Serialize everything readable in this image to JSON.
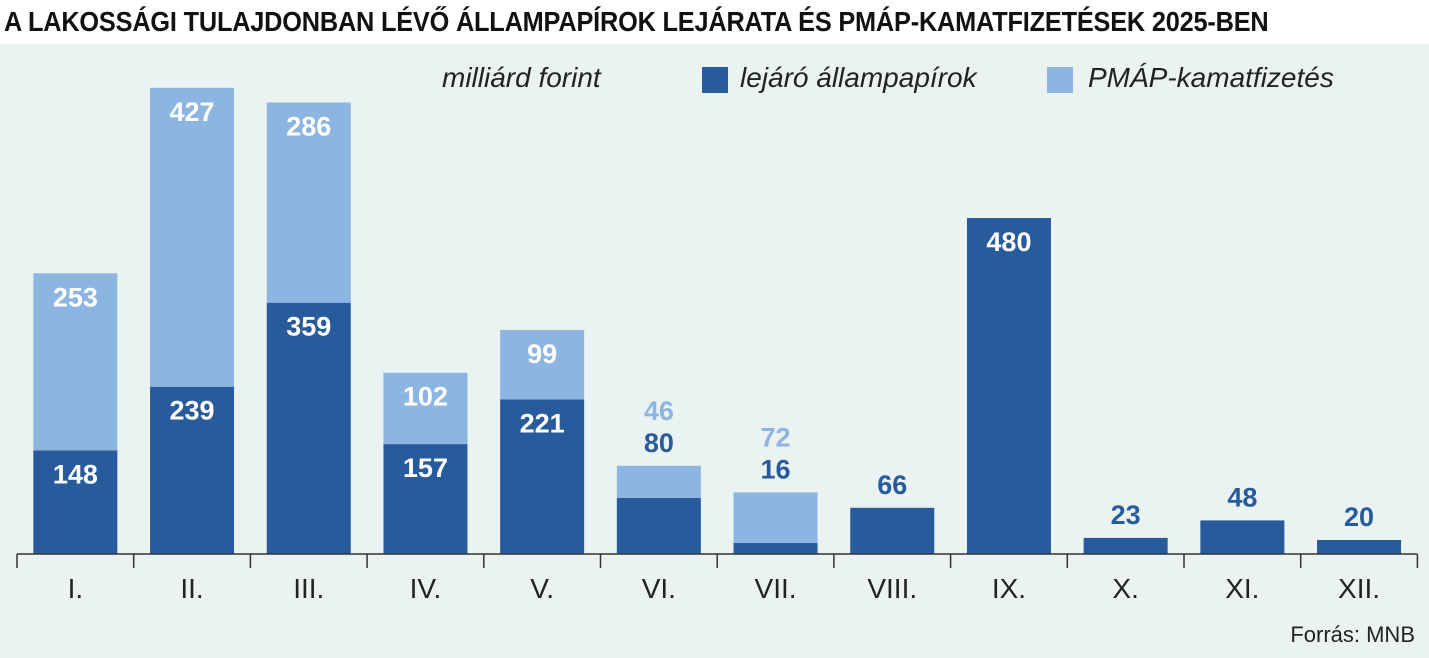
{
  "title": "A LAKOSSÁGI TULAJDONBAN LÉVŐ ÁLLAMPAPÍROK LEJÁRATA ÉS PMÁP-KAMATFIZETÉSEK 2025-BEN",
  "unit": "milliárd forint",
  "source": "Forrás: MNB",
  "colors": {
    "background": "#eaf3f1",
    "dark": "#275b9c",
    "light": "#8db5e2"
  },
  "legend": [
    {
      "label": "lejáró állampapírok",
      "color": "#275b9c"
    },
    {
      "label": "PMÁP-kamatfizetés",
      "color": "#8db5e2"
    }
  ],
  "chart_data": {
    "type": "bar",
    "stacked": true,
    "categories": [
      "I.",
      "II.",
      "III.",
      "IV.",
      "V.",
      "VI.",
      "VII.",
      "VIII.",
      "IX.",
      "X.",
      "XI.",
      "XII."
    ],
    "series": [
      {
        "name": "lejáró állampapírok",
        "values": [
          148,
          239,
          359,
          157,
          221,
          80,
          16,
          66,
          480,
          23,
          48,
          20
        ]
      },
      {
        "name": "PMÁP-kamatfizetés",
        "values": [
          253,
          427,
          286,
          102,
          99,
          46,
          72,
          null,
          null,
          null,
          null,
          null
        ]
      }
    ],
    "ylim": [
      0,
      700
    ],
    "grid": false,
    "legend_position": "top-right"
  }
}
